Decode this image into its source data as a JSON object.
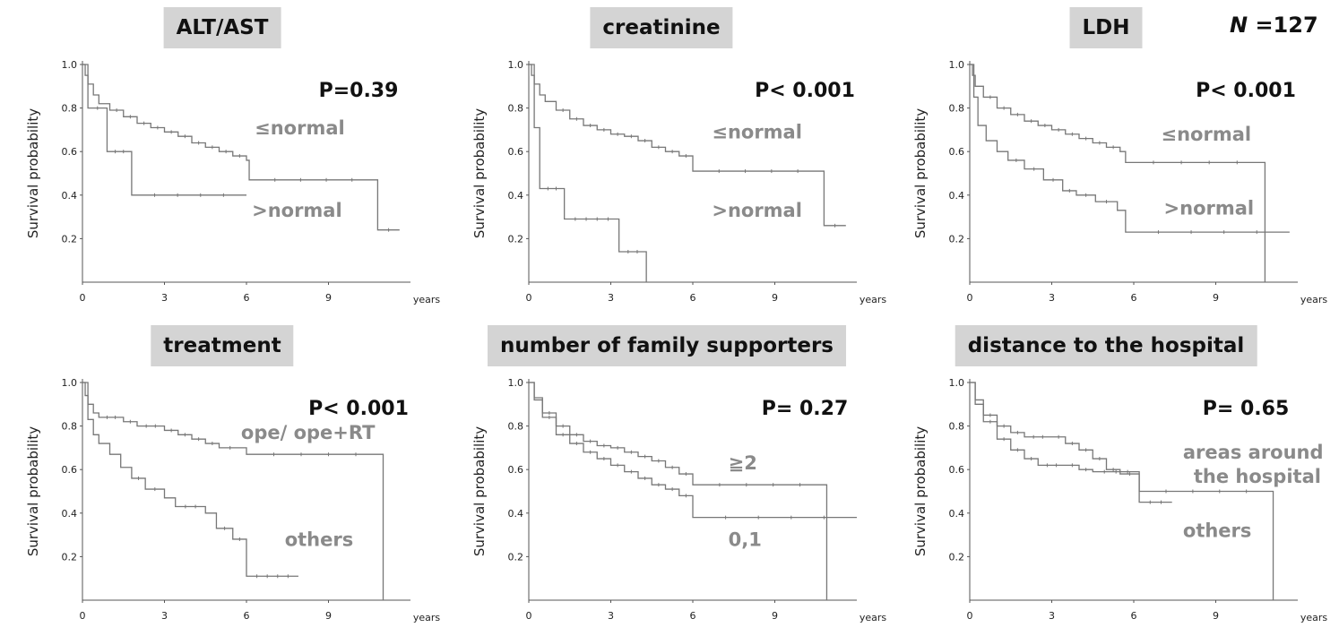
{
  "figure": {
    "n_label_prefix": "N",
    "n_label_suffix": " =127"
  },
  "chart_data": [
    {
      "type": "line",
      "title": "ALT/AST",
      "ylabel": "Survival probability",
      "xlabel": "years",
      "xlim": [
        0,
        12
      ],
      "ylim": [
        0,
        1.0
      ],
      "xticks": [
        "0",
        "3",
        "6",
        "9"
      ],
      "yticks": [
        "0.2",
        "0.4",
        "0.6",
        "0.8",
        "1.0"
      ],
      "p_value": "P=0.39",
      "series": [
        {
          "name": "≤normal",
          "label_pos": [
            6.3,
            0.68
          ],
          "steps": [
            [
              0,
              1.0
            ],
            [
              0.1,
              0.95
            ],
            [
              0.2,
              0.91
            ],
            [
              0.4,
              0.86
            ],
            [
              0.6,
              0.82
            ],
            [
              1.0,
              0.79
            ],
            [
              1.5,
              0.76
            ],
            [
              2.0,
              0.73
            ],
            [
              2.5,
              0.71
            ],
            [
              3.0,
              0.69
            ],
            [
              3.5,
              0.67
            ],
            [
              4.0,
              0.64
            ],
            [
              4.5,
              0.62
            ],
            [
              5.0,
              0.6
            ],
            [
              5.5,
              0.58
            ],
            [
              6.0,
              0.56
            ],
            [
              6.1,
              0.47
            ],
            [
              10.8,
              0.47
            ],
            [
              10.8,
              0.24
            ],
            [
              11.6,
              0.24
            ]
          ]
        },
        {
          "name": ">normal",
          "label_pos": [
            6.2,
            0.3
          ],
          "steps": [
            [
              0,
              1.0
            ],
            [
              0.2,
              0.8
            ],
            [
              0.9,
              0.8
            ],
            [
              0.9,
              0.6
            ],
            [
              1.8,
              0.6
            ],
            [
              1.8,
              0.4
            ],
            [
              6.0,
              0.4
            ]
          ]
        }
      ]
    },
    {
      "type": "line",
      "title": "creatinine",
      "ylabel": "Survival probability",
      "xlabel": "years",
      "xlim": [
        0,
        12
      ],
      "ylim": [
        0,
        1.0
      ],
      "xticks": [
        "0",
        "3",
        "6",
        "9"
      ],
      "yticks": [
        "0.2",
        "0.4",
        "0.6",
        "0.8",
        "1.0"
      ],
      "p_value": "P< 0.001",
      "series": [
        {
          "name": "≤normal",
          "label_pos": [
            6.7,
            0.66
          ],
          "steps": [
            [
              0,
              1.0
            ],
            [
              0.1,
              0.95
            ],
            [
              0.2,
              0.91
            ],
            [
              0.4,
              0.86
            ],
            [
              0.6,
              0.83
            ],
            [
              1.0,
              0.79
            ],
            [
              1.5,
              0.75
            ],
            [
              2.0,
              0.72
            ],
            [
              2.5,
              0.7
            ],
            [
              3.0,
              0.68
            ],
            [
              3.5,
              0.67
            ],
            [
              4.0,
              0.65
            ],
            [
              4.5,
              0.62
            ],
            [
              5.0,
              0.6
            ],
            [
              5.5,
              0.58
            ],
            [
              6.0,
              0.54
            ],
            [
              6.0,
              0.51
            ],
            [
              10.8,
              0.51
            ],
            [
              10.8,
              0.26
            ],
            [
              11.6,
              0.26
            ]
          ]
        },
        {
          "name": ">normal",
          "label_pos": [
            6.7,
            0.3
          ],
          "steps": [
            [
              0,
              1.0
            ],
            [
              0.2,
              0.71
            ],
            [
              0.4,
              0.71
            ],
            [
              0.4,
              0.43
            ],
            [
              1.3,
              0.43
            ],
            [
              1.3,
              0.29
            ],
            [
              3.3,
              0.29
            ],
            [
              3.3,
              0.14
            ],
            [
              4.3,
              0.14
            ],
            [
              4.3,
              0.0
            ]
          ]
        }
      ]
    },
    {
      "type": "line",
      "title": "LDH",
      "ylabel": "Survival probability",
      "xlabel": "years",
      "xlim": [
        0,
        12
      ],
      "ylim": [
        0,
        1.0
      ],
      "xticks": [
        "0",
        "3",
        "6",
        "9"
      ],
      "yticks": [
        "0.2",
        "0.4",
        "0.6",
        "0.8",
        "1.0"
      ],
      "p_value": "P< 0.001",
      "series": [
        {
          "name": "≤normal",
          "label_pos": [
            7.0,
            0.65
          ],
          "steps": [
            [
              0,
              1.0
            ],
            [
              0.1,
              0.95
            ],
            [
              0.2,
              0.9
            ],
            [
              0.5,
              0.85
            ],
            [
              1.0,
              0.8
            ],
            [
              1.5,
              0.77
            ],
            [
              2.0,
              0.74
            ],
            [
              2.5,
              0.72
            ],
            [
              3.0,
              0.7
            ],
            [
              3.5,
              0.68
            ],
            [
              4.0,
              0.66
            ],
            [
              4.5,
              0.64
            ],
            [
              5.0,
              0.62
            ],
            [
              5.5,
              0.6
            ],
            [
              5.7,
              0.55
            ],
            [
              10.8,
              0.55
            ],
            [
              10.8,
              0.0
            ]
          ]
        },
        {
          "name": ">normal",
          "label_pos": [
            7.1,
            0.31
          ],
          "steps": [
            [
              0,
              1.0
            ],
            [
              0.15,
              0.85
            ],
            [
              0.3,
              0.72
            ],
            [
              0.6,
              0.65
            ],
            [
              1.0,
              0.6
            ],
            [
              1.4,
              0.56
            ],
            [
              2.0,
              0.52
            ],
            [
              2.7,
              0.47
            ],
            [
              3.4,
              0.42
            ],
            [
              3.9,
              0.4
            ],
            [
              4.6,
              0.37
            ],
            [
              5.4,
              0.33
            ],
            [
              5.7,
              0.23
            ],
            [
              11.7,
              0.23
            ]
          ]
        }
      ]
    },
    {
      "type": "line",
      "title": "treatment",
      "ylabel": "Survival probability",
      "xlabel": "years",
      "xlim": [
        0,
        12
      ],
      "ylim": [
        0,
        1.0
      ],
      "xticks": [
        "0",
        "3",
        "6",
        "9"
      ],
      "yticks": [
        "0.2",
        "0.4",
        "0.6",
        "0.8",
        "1.0"
      ],
      "p_value": "P< 0.001",
      "series": [
        {
          "name": "ope/ ope+RT",
          "label_pos": [
            5.8,
            0.74
          ],
          "steps": [
            [
              0,
              1.0
            ],
            [
              0.1,
              0.94
            ],
            [
              0.2,
              0.9
            ],
            [
              0.4,
              0.86
            ],
            [
              0.6,
              0.84
            ],
            [
              1.5,
              0.82
            ],
            [
              2.0,
              0.8
            ],
            [
              3.0,
              0.78
            ],
            [
              3.5,
              0.76
            ],
            [
              4.0,
              0.74
            ],
            [
              4.5,
              0.72
            ],
            [
              5.0,
              0.7
            ],
            [
              5.8,
              0.7
            ],
            [
              6.0,
              0.67
            ],
            [
              11.0,
              0.67
            ],
            [
              11.0,
              0.0
            ]
          ]
        },
        {
          "name": "others",
          "label_pos": [
            7.4,
            0.25
          ],
          "steps": [
            [
              0,
              1.0
            ],
            [
              0.2,
              0.83
            ],
            [
              0.4,
              0.76
            ],
            [
              0.6,
              0.72
            ],
            [
              1.0,
              0.67
            ],
            [
              1.4,
              0.61
            ],
            [
              1.8,
              0.56
            ],
            [
              2.3,
              0.51
            ],
            [
              3.0,
              0.47
            ],
            [
              3.4,
              0.43
            ],
            [
              4.5,
              0.4
            ],
            [
              4.9,
              0.33
            ],
            [
              5.5,
              0.28
            ],
            [
              6.0,
              0.11
            ],
            [
              7.9,
              0.11
            ]
          ]
        }
      ]
    },
    {
      "type": "line",
      "title": "number of family supporters",
      "ylabel": "Survival probability",
      "xlabel": "years",
      "xlim": [
        0,
        12
      ],
      "ylim": [
        0,
        1.0
      ],
      "xticks": [
        "0",
        "3",
        "6",
        "9"
      ],
      "yticks": [
        "0.2",
        "0.4",
        "0.6",
        "0.8",
        "1.0"
      ],
      "p_value": "P= 0.27",
      "series": [
        {
          "name": "≧2",
          "label_pos": [
            7.3,
            0.6
          ],
          "steps": [
            [
              0,
              1.0
            ],
            [
              0.2,
              0.93
            ],
            [
              0.5,
              0.86
            ],
            [
              1.0,
              0.8
            ],
            [
              1.5,
              0.76
            ],
            [
              2.0,
              0.73
            ],
            [
              2.5,
              0.71
            ],
            [
              3.0,
              0.7
            ],
            [
              3.5,
              0.68
            ],
            [
              4.0,
              0.66
            ],
            [
              4.5,
              0.64
            ],
            [
              5.0,
              0.61
            ],
            [
              5.5,
              0.58
            ],
            [
              6.0,
              0.53
            ],
            [
              10.9,
              0.53
            ],
            [
              10.9,
              0.0
            ]
          ]
        },
        {
          "name": "0,1",
          "label_pos": [
            7.3,
            0.25
          ],
          "steps": [
            [
              0,
              1.0
            ],
            [
              0.2,
              0.92
            ],
            [
              0.5,
              0.84
            ],
            [
              1.0,
              0.76
            ],
            [
              1.5,
              0.72
            ],
            [
              2.0,
              0.68
            ],
            [
              2.5,
              0.65
            ],
            [
              3.0,
              0.62
            ],
            [
              3.5,
              0.59
            ],
            [
              4.0,
              0.56
            ],
            [
              4.5,
              0.53
            ],
            [
              5.0,
              0.51
            ],
            [
              5.5,
              0.48
            ],
            [
              6.0,
              0.38
            ],
            [
              12.0,
              0.38
            ]
          ]
        }
      ]
    },
    {
      "type": "line",
      "title": "distance to the hospital",
      "ylabel": "Survival probability",
      "xlabel": "years",
      "xlim": [
        0,
        12
      ],
      "ylim": [
        0,
        1.0
      ],
      "xticks": [
        "0",
        "3",
        "6",
        "9"
      ],
      "yticks": [
        "0.2",
        "0.4",
        "0.6",
        "0.8",
        "1.0"
      ],
      "p_value": "P= 0.65",
      "series": [
        {
          "name": "areas around the hospital",
          "name_lines": [
            "areas around",
            "the hospital"
          ],
          "label_pos": [
            7.8,
            0.65
          ],
          "steps": [
            [
              0,
              1.0
            ],
            [
              0.2,
              0.92
            ],
            [
              0.5,
              0.85
            ],
            [
              1.0,
              0.8
            ],
            [
              1.5,
              0.77
            ],
            [
              2.0,
              0.75
            ],
            [
              3.0,
              0.75
            ],
            [
              3.5,
              0.72
            ],
            [
              4.0,
              0.69
            ],
            [
              4.5,
              0.65
            ],
            [
              5.0,
              0.6
            ],
            [
              5.5,
              0.58
            ],
            [
              6.2,
              0.56
            ],
            [
              6.2,
              0.5
            ],
            [
              11.1,
              0.5
            ],
            [
              11.1,
              0.0
            ]
          ]
        },
        {
          "name": "others",
          "label_pos": [
            7.8,
            0.29
          ],
          "steps": [
            [
              0,
              1.0
            ],
            [
              0.2,
              0.9
            ],
            [
              0.5,
              0.82
            ],
            [
              1.0,
              0.74
            ],
            [
              1.5,
              0.69
            ],
            [
              2.0,
              0.65
            ],
            [
              2.5,
              0.62
            ],
            [
              3.5,
              0.62
            ],
            [
              4.0,
              0.6
            ],
            [
              4.5,
              0.59
            ],
            [
              6.2,
              0.59
            ],
            [
              6.2,
              0.45
            ],
            [
              7.4,
              0.45
            ]
          ]
        }
      ]
    }
  ]
}
